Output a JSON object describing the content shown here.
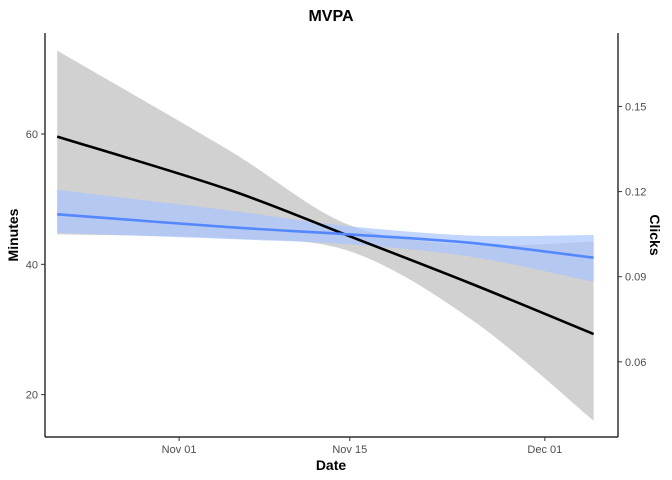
{
  "chart_data": {
    "type": "line",
    "title": "MVPA",
    "xlabel": "Date",
    "ylabel": "Minutes",
    "y2label": "Clicks",
    "x_ticks": [
      "2024-11-01",
      "2024-11-15",
      "2024-12-01"
    ],
    "x_tick_labels": [
      "Nov 01",
      "Nov 15",
      "Dec 01"
    ],
    "xlim": [
      "2024-10-21",
      "2024-12-07"
    ],
    "ylim": [
      13.5,
      75.5
    ],
    "y_ticks": [
      20,
      40,
      60
    ],
    "y2lim": [
      0.0335,
      0.1759
    ],
    "y2_ticks": [
      0.06,
      0.09,
      0.12,
      0.15
    ],
    "y2_tick_labels": [
      "0.06",
      "0.09",
      "0.12",
      "0.15"
    ],
    "grid": false,
    "series": [
      {
        "axis": "left",
        "color": "#000000",
        "band_color": "#bebebe",
        "x": [
          "2024-10-22",
          "2024-11-05",
          "2024-11-15",
          "2024-11-25",
          "2024-12-05"
        ],
        "y": [
          59.6,
          51.5,
          44.3,
          37.0,
          29.3
        ],
        "y_lower": [
          44.6,
          44.0,
          42.0,
          31.5,
          16.0
        ],
        "y_upper": [
          72.8,
          57.6,
          46.0,
          43.0,
          43.5
        ]
      },
      {
        "axis": "right",
        "color": "#5588ff",
        "band_color": "#a8c4ff",
        "x": [
          "2024-10-22",
          "2024-11-05",
          "2024-11-15",
          "2024-11-25",
          "2024-12-05"
        ],
        "y": [
          0.112,
          0.1075,
          0.1049,
          0.1019,
          0.0967
        ],
        "y_lower": [
          0.1055,
          0.1033,
          0.1014,
          0.097,
          0.0882
        ],
        "y_upper": [
          0.1206,
          0.1134,
          0.1078,
          0.1045,
          0.1047
        ]
      }
    ]
  }
}
